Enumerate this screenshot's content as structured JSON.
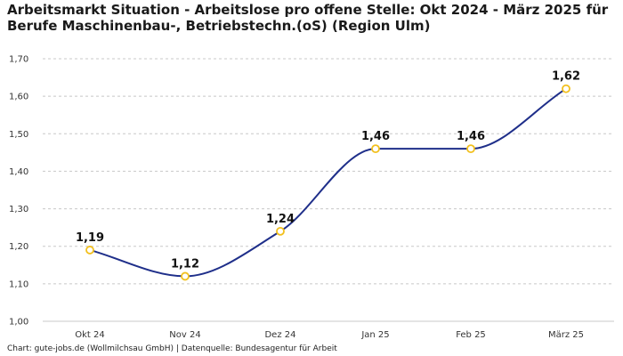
{
  "chart_data": {
    "type": "line",
    "title": "Arbeitsmarkt Situation - Arbeitslose pro offene Stelle: Okt 2024 - März 2025 für Berufe Maschinenbau-, Betriebstechn.(oS) (Region Ulm)",
    "categories": [
      "Okt 24",
      "Nov 24",
      "Dez 24",
      "Jan 25",
      "Feb 25",
      "März 25"
    ],
    "series": [
      {
        "values": [
          1.19,
          1.12,
          1.24,
          1.46,
          1.46,
          1.62
        ],
        "data_labels": [
          "1,19",
          "1,12",
          "1,24",
          "1,46",
          "1,46",
          "1,62"
        ]
      }
    ],
    "ylim": [
      1.0,
      1.7
    ],
    "yticks": [
      1.0,
      1.1,
      1.2,
      1.3,
      1.4,
      1.5,
      1.6,
      1.7
    ],
    "ytick_labels": [
      "1,00",
      "1,10",
      "1,20",
      "1,30",
      "1,40",
      "1,50",
      "1,60",
      "1,70"
    ],
    "xlabel": "",
    "ylabel": "",
    "grid": "horizontal-dashed",
    "legend": "none",
    "colors": {
      "line": "#1f2f8a",
      "marker_stroke": "#f2c01e",
      "marker_fill": "#ffffff",
      "grid": "#c8c8c8"
    }
  },
  "footer": {
    "source": "Chart: gute-jobs.de (Wollmilchsau GmbH) | Datenquelle: Bundesagentur für Arbeit"
  }
}
